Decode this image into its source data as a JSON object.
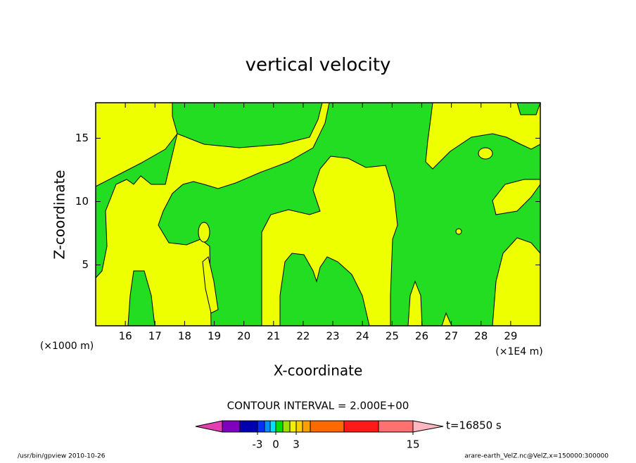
{
  "chart_data": {
    "type": "contour",
    "title": "vertical velocity",
    "x_label": "X-coordinate",
    "y_label": "Z-coordinate",
    "x_scale_note": "(×1000 m)",
    "x_unit_note": "(×1E4 m)",
    "xlim": [
      15,
      30
    ],
    "xticks": [
      16,
      17,
      18,
      19,
      20,
      21,
      22,
      23,
      24,
      25,
      26,
      27,
      28,
      29
    ],
    "ylim": [
      0.2,
      17.8
    ],
    "yticks": [
      5,
      10,
      15
    ],
    "contour_interval_label": "CONTOUR INTERVAL = 2.000E+00",
    "time_label": "t=16850 s",
    "colorbar": {
      "levels": [
        -7,
        -5,
        -3,
        -2,
        -1,
        0,
        1,
        2,
        3,
        4,
        5,
        7,
        11,
        15
      ],
      "colors": [
        "#8000c0",
        "#0000b0",
        "#0030ff",
        "#0090ff",
        "#00e0ff",
        "#00e000",
        "#a0e000",
        "#f0f000",
        "#ffd000",
        "#ffa000",
        "#ff6a00",
        "#ff1a1a",
        "#ff7070"
      ],
      "under_color": "#e040b0",
      "over_color": "#ffb8c0",
      "ticks": [
        -3,
        0,
        3,
        15
      ]
    }
  },
  "footer": {
    "left": "/usr/bin/gpview  2010-10-26",
    "right": "arare-earth_VelZ.nc@VelZ,x=150000:300000"
  }
}
